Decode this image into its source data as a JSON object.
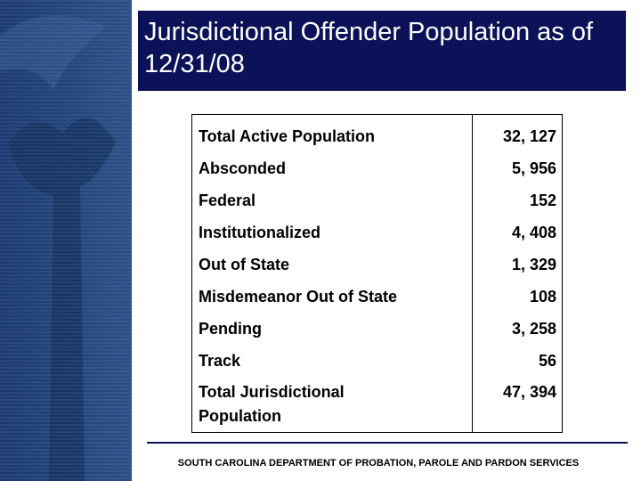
{
  "header": {
    "title": "Jurisdictional Offender Population as of 12/31/08"
  },
  "table": {
    "rows": [
      [
        "Total Active Population",
        "32, 127"
      ],
      [
        "Absconded",
        "5, 956"
      ],
      [
        "Federal",
        "152"
      ],
      [
        "Institutionalized",
        "4, 408"
      ],
      [
        "Out of State",
        "1, 329"
      ],
      [
        "Misdemeanor Out of State",
        "108"
      ],
      [
        "Pending",
        "3, 258"
      ],
      [
        "Track",
        "56"
      ],
      [
        "Total Jurisdictional Population",
        "47, 394"
      ]
    ]
  },
  "footer": {
    "text": "SOUTH CAROLINA DEPARTMENT OF PROBATION, PAROLE AND PARDON SERVICES"
  }
}
